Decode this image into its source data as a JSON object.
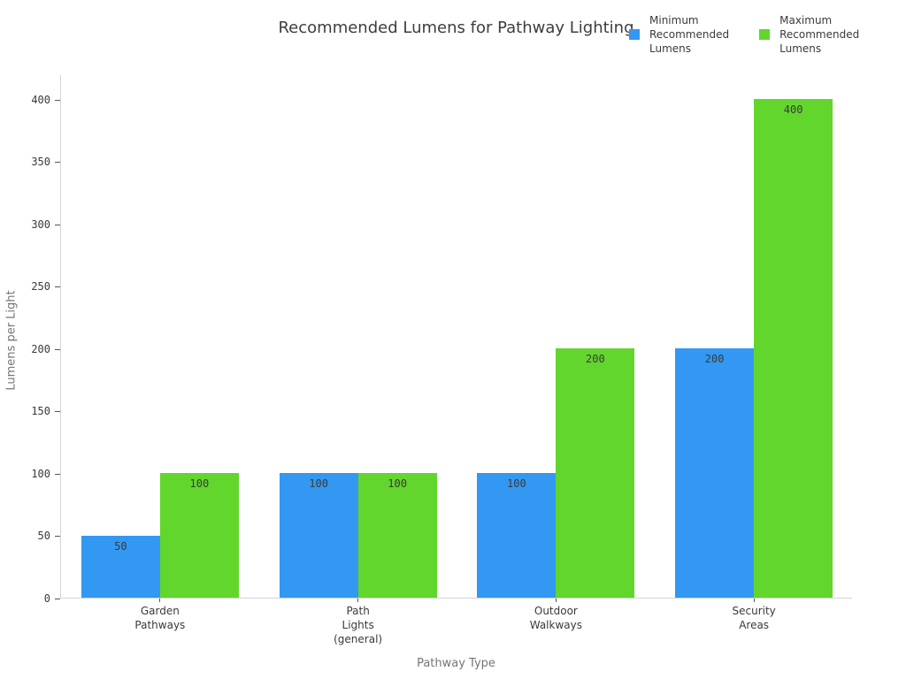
{
  "chart_data": {
    "type": "bar",
    "title": "Recommended Lumens for Pathway Lighting",
    "xlabel": "Pathway Type",
    "ylabel": "Lumens per Light",
    "categories": [
      "Garden\nPathways",
      "Path\nLights\n(general)",
      "Outdoor\nWalkways",
      "Security\nAreas"
    ],
    "series": [
      {
        "name": "Minimum Recommended Lumens",
        "color": "#3398f2",
        "values": [
          50,
          100,
          100,
          200
        ]
      },
      {
        "name": "Maximum Recommended Lumens",
        "color": "#62d62c",
        "values": [
          100,
          100,
          200,
          400
        ]
      }
    ],
    "ylim": [
      0,
      400
    ],
    "yticks": [
      0,
      50,
      100,
      150,
      200,
      250,
      300,
      350,
      400
    ],
    "grid": false,
    "legend_position": "top-right",
    "bar_value_labels": true
  },
  "legend": [
    {
      "label": "Minimum\nRecommended\nLumens",
      "color": "#3398f2"
    },
    {
      "label": "Maximum\nRecommended\nLumens",
      "color": "#62d62c"
    }
  ]
}
